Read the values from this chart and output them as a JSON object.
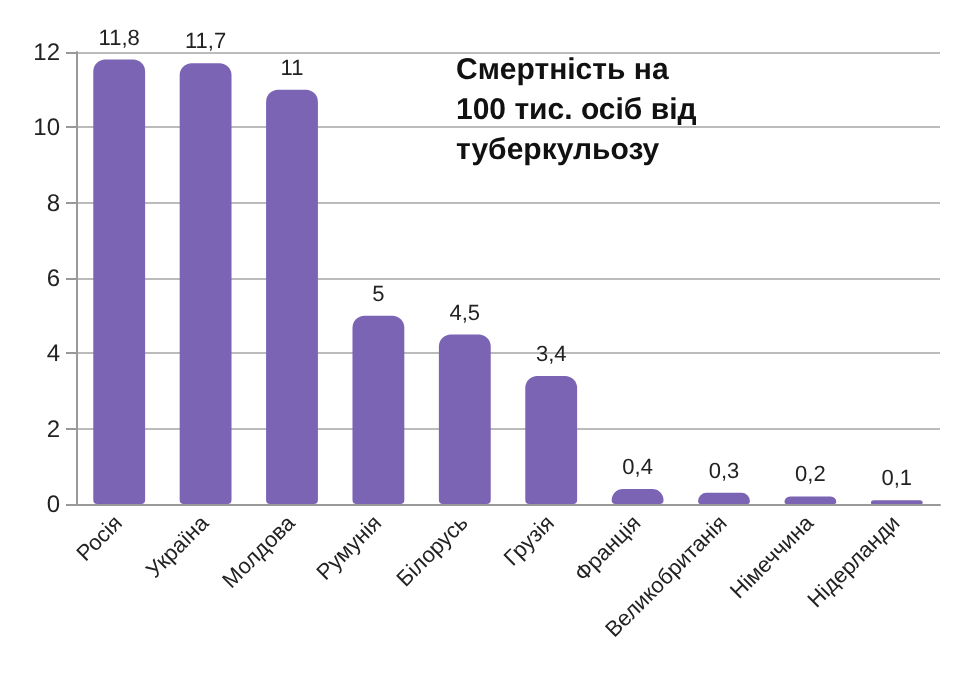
{
  "chart_data": {
    "type": "bar",
    "title": "Смертність на 100 тис. осіб від туберкульозу",
    "categories": [
      "Росія",
      "Україна",
      "Молдова",
      "Румунія",
      "Білорусь",
      "Грузія",
      "Франція",
      "Великобританія",
      "Німеччина",
      "Нідерланди"
    ],
    "values": [
      11.8,
      11.7,
      11,
      5,
      4.5,
      3.4,
      0.4,
      0.3,
      0.2,
      0.1
    ],
    "value_labels": [
      "11,8",
      "11,7",
      "11",
      "5",
      "4,5",
      "3,4",
      "0,4",
      "0,3",
      "0,2",
      "0,1"
    ],
    "color": "#7b64b4",
    "ylim": [
      0,
      12
    ],
    "yticks": [
      0,
      2,
      4,
      6,
      8,
      10,
      12
    ],
    "grid": "y"
  }
}
